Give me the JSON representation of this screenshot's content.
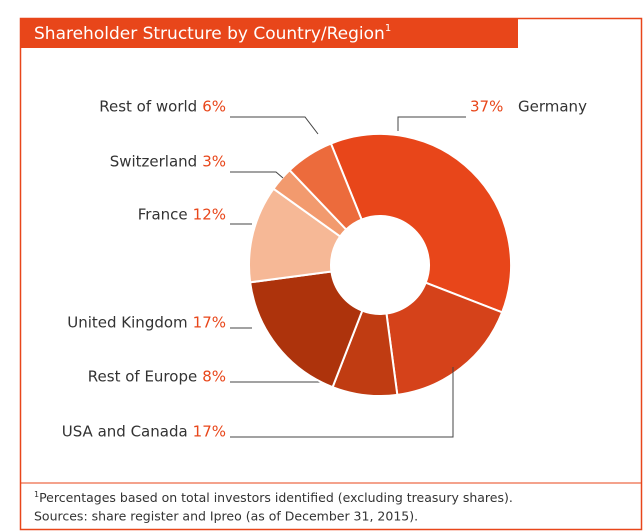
{
  "chart_data": {
    "type": "donut",
    "title": "Shareholder Structure by Country/Region",
    "title_marker": "1",
    "categories": [
      "Germany",
      "USA and Canada",
      "Rest of Europe",
      "United Kingdom",
      "France",
      "Switzerland",
      "Rest of world"
    ],
    "values": [
      37,
      17,
      8,
      17,
      12,
      3,
      6
    ],
    "value_labels": [
      "37%",
      "17%",
      "8%",
      "17%",
      "12%",
      "3%",
      "6%"
    ],
    "colors": [
      "#e8461a",
      "#d5421a",
      "#c03c12",
      "#ad330c",
      "#f6b896",
      "#f29a6e",
      "#ec6b3c"
    ],
    "footnote_marker": "1",
    "footnotes": [
      "Percentages based on total investors identified (excluding treasury shares).",
      "Sources: share register and Ipreo (as of December 31, 2015)."
    ]
  }
}
